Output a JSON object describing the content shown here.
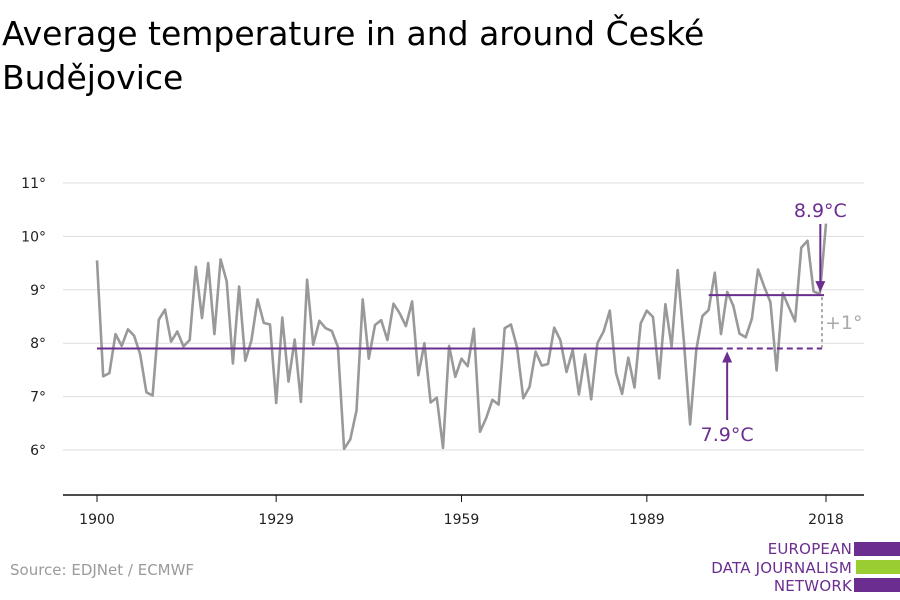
{
  "title": "Average temperature in and around České Budějovice",
  "source": "Source: EDJNet / ECMWF",
  "logo": {
    "lines": [
      "EUROPEAN",
      "DATA JOURNALISM",
      "NETWORK"
    ],
    "colors": [
      "#6b2d8f",
      "#9acd32",
      "#6b2d8f"
    ]
  },
  "colors": {
    "series": "#999999",
    "accent": "#6b2d8f",
    "grid": "#dddddd",
    "diff": "#aaaaaa"
  },
  "chart_data": {
    "type": "line",
    "ylim": [
      5,
      11
    ],
    "xlim": [
      1900,
      2018
    ],
    "yticks": [
      6,
      7,
      8,
      9,
      10,
      11
    ],
    "ytick_labels": [
      "6°",
      "7°",
      "8°",
      "9°",
      "10°",
      "11°"
    ],
    "xticks": [
      1900,
      1929,
      1959,
      1989,
      2018
    ],
    "grid": true,
    "series": [
      {
        "x": [
          1900,
          1901,
          1902,
          1903,
          1904,
          1905,
          1906,
          1907,
          1908,
          1909,
          1910,
          1911,
          1912,
          1913,
          1914,
          1915,
          1916,
          1917,
          1918,
          1919,
          1920,
          1921,
          1922,
          1923,
          1924,
          1925,
          1926,
          1927,
          1928,
          1929,
          1930,
          1931,
          1932,
          1933,
          1934,
          1935,
          1936,
          1937,
          1938,
          1939,
          1940,
          1941,
          1942,
          1943,
          1944,
          1945,
          1946,
          1947,
          1948,
          1949,
          1950,
          1951,
          1952,
          1953,
          1954,
          1955,
          1956,
          1957,
          1958,
          1959,
          1960,
          1961,
          1962,
          1963,
          1964,
          1965,
          1966,
          1967,
          1968,
          1969,
          1970,
          1971,
          1972,
          1973,
          1974,
          1975,
          1976,
          1977,
          1978,
          1979,
          1980,
          1981,
          1982,
          1983,
          1984,
          1985,
          1986,
          1987,
          1988,
          1989,
          1990,
          1991,
          1992,
          1993,
          1994,
          1995,
          1996,
          1997,
          1998,
          1999,
          2000,
          2001,
          2002,
          2003,
          2004,
          2005,
          2006,
          2007,
          2008,
          2009,
          2010,
          2011,
          2012,
          2013,
          2014,
          2015,
          2016,
          2017,
          2018
        ],
        "y": [
          9.55,
          7.38,
          7.44,
          8.17,
          7.95,
          8.26,
          8.14,
          7.79,
          7.08,
          7.02,
          8.44,
          8.63,
          8.03,
          8.22,
          7.94,
          8.06,
          9.43,
          8.47,
          9.5,
          8.17,
          9.57,
          9.16,
          7.62,
          9.06,
          7.67,
          8.05,
          8.82,
          8.38,
          8.35,
          6.88,
          8.48,
          7.28,
          8.07,
          6.9,
          9.19,
          7.97,
          8.42,
          8.28,
          8.23,
          7.93,
          6.02,
          6.2,
          6.74,
          8.82,
          7.71,
          8.34,
          8.43,
          8.06,
          8.74,
          8.56,
          8.32,
          8.78,
          7.4,
          8.0,
          6.89,
          6.98,
          6.04,
          7.95,
          7.37,
          7.71,
          7.57,
          8.27,
          6.34,
          6.6,
          6.94,
          6.85,
          8.28,
          8.35,
          7.92,
          6.97,
          7.18,
          7.84,
          7.58,
          7.61,
          8.29,
          8.06,
          7.46,
          7.87,
          7.04,
          7.79,
          6.95,
          8.0,
          8.22,
          8.61,
          7.45,
          7.05,
          7.73,
          7.17,
          8.37,
          8.61,
          8.49,
          7.34,
          8.73,
          7.94,
          9.37,
          8.03,
          6.48,
          7.88,
          8.51,
          8.62,
          9.32,
          8.17,
          8.96,
          8.7,
          8.18,
          8.11,
          8.46,
          9.38,
          9.06,
          8.77,
          7.49,
          8.94,
          8.67,
          8.41,
          9.79,
          9.92,
          8.97,
          8.92,
          10.24
        ]
      }
    ],
    "annotations": {
      "baseline": {
        "value": 7.9,
        "label": "7.9°C",
        "x_start": 1900,
        "x_end": 2018,
        "solid_until": 2000
      },
      "recent": {
        "value": 8.9,
        "label": "8.9°C",
        "x_start": 1999,
        "x_end": 2018
      },
      "difference_label": "+1°"
    }
  }
}
